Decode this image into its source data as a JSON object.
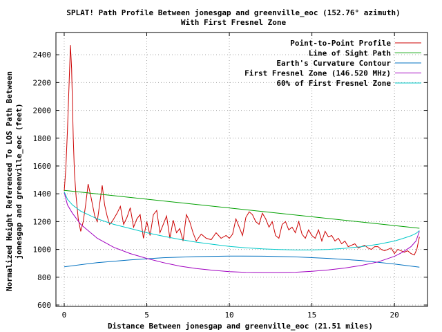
{
  "chart_data": {
    "type": "line",
    "title": "SPLAT! Path Profile Between jonesgap and greenville_eoc (152.76° azimuth)",
    "subtitle": "With First Fresnel Zone",
    "xlabel": "Distance Between jonesgap and greenville_eoc (21.51 miles)",
    "ylabel_line1": "Normalized Height Referenced To LOS Path Between",
    "ylabel_line2": "jonesgap and greenville_eoc (feet)",
    "xlim": [
      -0.5,
      22
    ],
    "ylim": [
      590,
      2560
    ],
    "x_ticks": [
      0,
      5,
      10,
      15,
      20
    ],
    "y_ticks": [
      600,
      800,
      1000,
      1200,
      1400,
      1600,
      1800,
      2000,
      2200,
      2400
    ],
    "grid": true,
    "legend_position": "top-right",
    "series": [
      {
        "name": "Point-to-Point Profile",
        "color": "#cc0000",
        "x": [
          0.0,
          0.1,
          0.2,
          0.3,
          0.38,
          0.45,
          0.5,
          0.55,
          0.62,
          0.72,
          0.85,
          1.0,
          1.15,
          1.3,
          1.45,
          1.6,
          1.75,
          1.85,
          2.0,
          2.15,
          2.3,
          2.45,
          2.6,
          2.75,
          2.9,
          3.05,
          3.2,
          3.4,
          3.6,
          3.8,
          4.0,
          4.2,
          4.4,
          4.6,
          4.8,
          5.0,
          5.2,
          5.4,
          5.6,
          5.8,
          6.0,
          6.2,
          6.4,
          6.6,
          6.8,
          7.0,
          7.2,
          7.4,
          7.6,
          7.8,
          8.0,
          8.3,
          8.6,
          8.9,
          9.2,
          9.5,
          9.8,
          10.0,
          10.2,
          10.4,
          10.6,
          10.8,
          11.0,
          11.2,
          11.4,
          11.6,
          11.8,
          12.0,
          12.2,
          12.4,
          12.6,
          12.8,
          13.0,
          13.2,
          13.4,
          13.6,
          13.8,
          14.0,
          14.2,
          14.4,
          14.6,
          14.8,
          15.0,
          15.2,
          15.4,
          15.6,
          15.8,
          16.0,
          16.2,
          16.4,
          16.6,
          16.8,
          17.0,
          17.2,
          17.4,
          17.6,
          17.8,
          18.0,
          18.2,
          18.4,
          18.6,
          18.8,
          19.0,
          19.2,
          19.4,
          19.6,
          19.8,
          20.0,
          20.2,
          20.4,
          20.6,
          20.8,
          21.0,
          21.2,
          21.35,
          21.51
        ],
        "y": [
          1420,
          1580,
          1860,
          2200,
          2470,
          2300,
          2050,
          1800,
          1550,
          1380,
          1220,
          1130,
          1200,
          1320,
          1470,
          1390,
          1300,
          1240,
          1200,
          1330,
          1460,
          1320,
          1240,
          1180,
          1200,
          1230,
          1260,
          1310,
          1180,
          1230,
          1300,
          1160,
          1220,
          1250,
          1080,
          1200,
          1100,
          1250,
          1280,
          1120,
          1180,
          1240,
          1080,
          1210,
          1120,
          1150,
          1060,
          1250,
          1200,
          1120,
          1060,
          1110,
          1080,
          1070,
          1120,
          1080,
          1100,
          1080,
          1110,
          1220,
          1160,
          1100,
          1230,
          1270,
          1250,
          1200,
          1180,
          1260,
          1220,
          1160,
          1200,
          1100,
          1080,
          1180,
          1200,
          1140,
          1160,
          1120,
          1200,
          1110,
          1080,
          1140,
          1100,
          1080,
          1140,
          1060,
          1130,
          1090,
          1100,
          1060,
          1080,
          1040,
          1060,
          1020,
          1030,
          1040,
          1010,
          1020,
          1030,
          1010,
          1000,
          1020,
          1020,
          1000,
          990,
          1000,
          1010,
          970,
          1000,
          990,
          980,
          990,
          970,
          960,
          1000,
          1090
        ]
      },
      {
        "name": "Line of Sight Path",
        "color": "#00a000",
        "x": [
          0,
          21.51
        ],
        "y": [
          1425,
          1152
        ]
      },
      {
        "name": "Earth's Curvature Contour",
        "color": "#0070c0",
        "x": [
          0,
          2,
          4,
          6,
          8,
          10,
          10.75,
          12,
          14,
          16,
          18,
          20,
          21.51
        ],
        "y": [
          875,
          905,
          925,
          940,
          948,
          952,
          952,
          951,
          946,
          935,
          920,
          895,
          872
        ]
      },
      {
        "name": "First Fresnel Zone (146.520 MHz)",
        "color": "#a000c0",
        "x": [
          0,
          0.2,
          0.5,
          1,
          2,
          3,
          4,
          5,
          6,
          7,
          8,
          9,
          10,
          11,
          12,
          13,
          14,
          15,
          16,
          17,
          18,
          19,
          20,
          20.5,
          21,
          21.3,
          21.51
        ],
        "y": [
          1410,
          1320,
          1260,
          1180,
          1080,
          1015,
          970,
          935,
          905,
          880,
          862,
          850,
          840,
          835,
          834,
          834,
          836,
          842,
          852,
          866,
          885,
          910,
          950,
          980,
          1020,
          1060,
          1130
        ]
      },
      {
        "name": "60% of First Fresnel Zone",
        "color": "#00c8c8",
        "x": [
          0,
          0.2,
          0.5,
          1,
          2,
          3,
          4,
          5,
          6,
          7,
          8,
          9,
          10,
          11,
          12,
          13,
          14,
          15,
          16,
          17,
          18,
          19,
          20,
          20.5,
          21,
          21.3,
          21.51
        ],
        "y": [
          1415,
          1360,
          1320,
          1275,
          1220,
          1180,
          1150,
          1120,
          1095,
          1072,
          1052,
          1036,
          1022,
          1012,
          1004,
          999,
          996,
          996,
          1000,
          1008,
          1020,
          1036,
          1060,
          1078,
          1098,
          1115,
          1135
        ]
      }
    ]
  }
}
